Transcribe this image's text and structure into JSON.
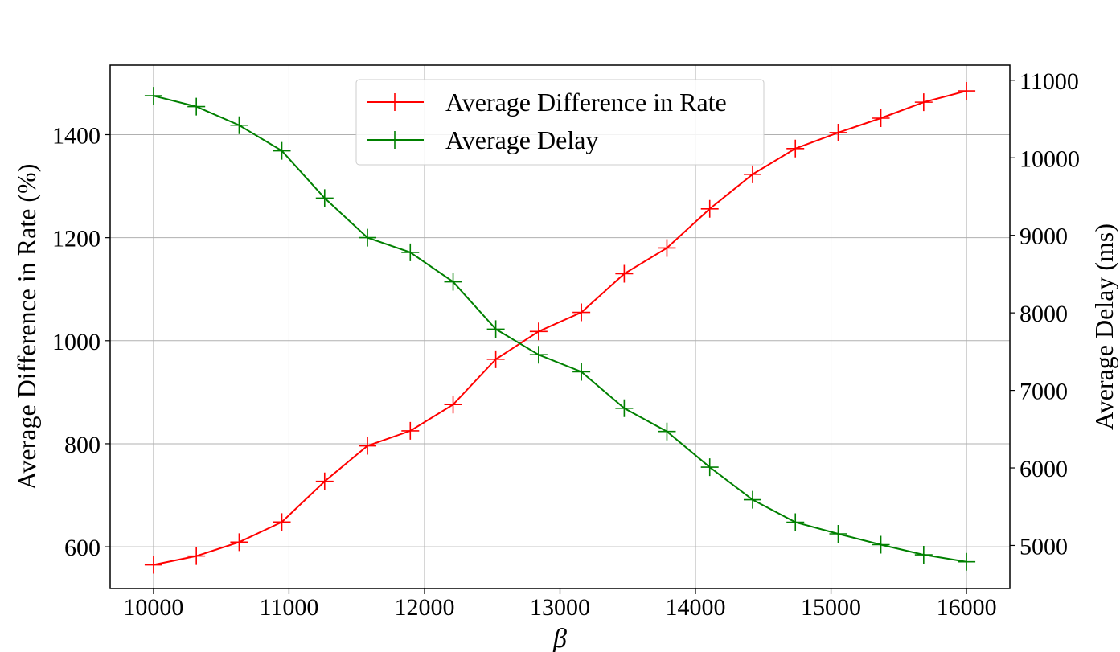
{
  "chart_data": {
    "type": "line",
    "xlabel": "β",
    "ylabel_left": "Average Difference in Rate (%)",
    "ylabel_right": "Average Delay (ms)",
    "xlim": [
      9680,
      16320
    ],
    "ylim_left": [
      519,
      1535
    ],
    "ylim_right": [
      4445,
      11195
    ],
    "x_ticks": [
      10000,
      11000,
      12000,
      13000,
      14000,
      15000,
      16000
    ],
    "y_ticks_left": [
      600,
      800,
      1000,
      1200,
      1400
    ],
    "y_ticks_right": [
      5000,
      6000,
      7000,
      8000,
      9000,
      10000,
      11000
    ],
    "grid": true,
    "legend_position": "upper-center",
    "x": [
      10000,
      10316,
      10632,
      10947,
      11263,
      11579,
      11895,
      12211,
      12526,
      12842,
      13158,
      13474,
      13789,
      14105,
      14421,
      14737,
      15053,
      15368,
      15684,
      16000
    ],
    "series": [
      {
        "name": "Average Difference in Rate",
        "axis": "left",
        "color": "#ff0000",
        "marker": "plus",
        "values": [
          565,
          582,
          609,
          648,
          727,
          796,
          825,
          876,
          964,
          1018,
          1055,
          1130,
          1180,
          1256,
          1323,
          1373,
          1404,
          1432,
          1463,
          1485
        ]
      },
      {
        "name": "Average Delay",
        "axis": "right",
        "color": "#008000",
        "marker": "plus",
        "values": [
          10800,
          10660,
          10420,
          10090,
          9480,
          8970,
          8780,
          8400,
          7790,
          7460,
          7240,
          6770,
          6470,
          6010,
          5590,
          5300,
          5150,
          5010,
          4880,
          4790
        ]
      }
    ]
  }
}
